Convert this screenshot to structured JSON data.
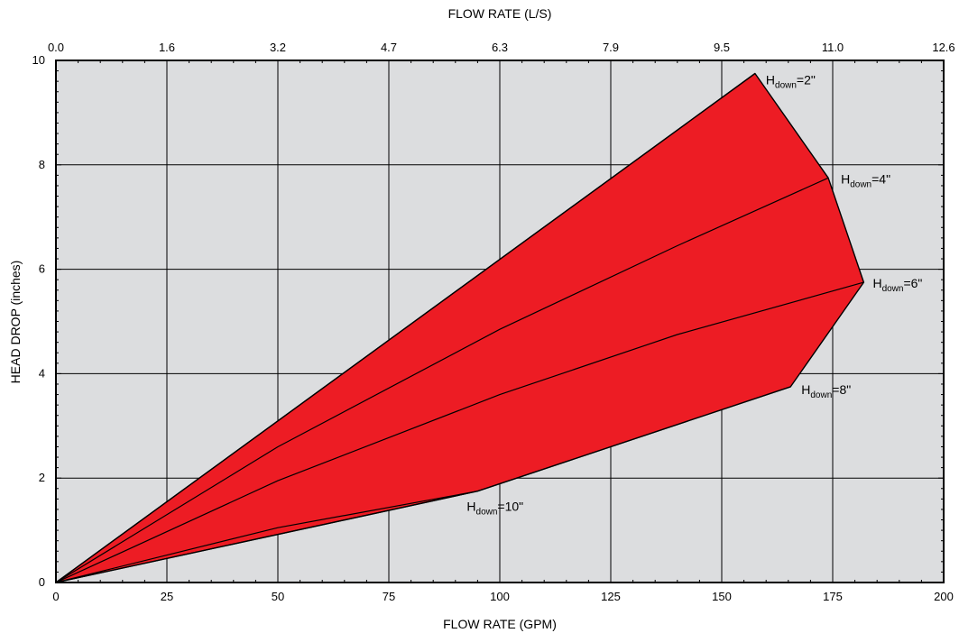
{
  "chart_data": {
    "type": "area",
    "title": "",
    "xlabel": "FLOW RATE (GPM)",
    "x2label": "FLOW RATE (L/S)",
    "ylabel": "HEAD DROP (inches)",
    "xlim": [
      0,
      200
    ],
    "ylim": [
      0,
      10
    ],
    "x_ticks": [
      0,
      25,
      50,
      75,
      100,
      125,
      150,
      175,
      200
    ],
    "x_tick_labels": [
      "0",
      "25",
      "50",
      "75",
      "100",
      "125",
      "150",
      "175",
      "200"
    ],
    "x2_tick_labels": [
      "0.0",
      "1.6",
      "3.2",
      "4.7",
      "6.3",
      "7.9",
      "9.5",
      "11.0",
      "12.6"
    ],
    "y_ticks": [
      0,
      2,
      4,
      6,
      8,
      10
    ],
    "y_tick_labels": [
      "0",
      "2",
      "4",
      "6",
      "8",
      "10"
    ],
    "grid": true,
    "fill_color": "#ED1C24",
    "background_color": "#DCDDDF",
    "envelope": [
      {
        "x": 0,
        "y": 0
      },
      {
        "x": 157.5,
        "y": 9.75
      },
      {
        "x": 174,
        "y": 7.75
      },
      {
        "x": 182,
        "y": 5.75
      },
      {
        "x": 165.5,
        "y": 3.75
      },
      {
        "x": 95,
        "y": 1.75
      },
      {
        "x": 0,
        "y": 0
      }
    ],
    "series": [
      {
        "label_main": "H",
        "label_sub": "down",
        "label_tail": "=2\"",
        "points": [
          {
            "x": 0,
            "y": 0
          },
          {
            "x": 157.5,
            "y": 9.75
          }
        ]
      },
      {
        "label_main": "H",
        "label_sub": "down",
        "label_tail": "=4\"",
        "points": [
          {
            "x": 0,
            "y": 0
          },
          {
            "x": 50,
            "y": 2.6
          },
          {
            "x": 100,
            "y": 4.85
          },
          {
            "x": 140,
            "y": 6.45
          },
          {
            "x": 174,
            "y": 7.75
          }
        ]
      },
      {
        "label_main": "H",
        "label_sub": "down",
        "label_tail": "=6\"",
        "points": [
          {
            "x": 0,
            "y": 0
          },
          {
            "x": 50,
            "y": 1.95
          },
          {
            "x": 100,
            "y": 3.6
          },
          {
            "x": 140,
            "y": 4.75
          },
          {
            "x": 182,
            "y": 5.75
          }
        ]
      },
      {
        "label_main": "H",
        "label_sub": "down",
        "label_tail": "=8\"",
        "points": [
          {
            "x": 0,
            "y": 0
          },
          {
            "x": 95,
            "y": 1.75
          },
          {
            "x": 165.5,
            "y": 3.75
          }
        ]
      },
      {
        "label_main": "H",
        "label_sub": "down",
        "label_tail": "=10\"",
        "points": [
          {
            "x": 0,
            "y": 0
          },
          {
            "x": 50,
            "y": 1.05
          },
          {
            "x": 95,
            "y": 1.75
          }
        ]
      }
    ]
  }
}
